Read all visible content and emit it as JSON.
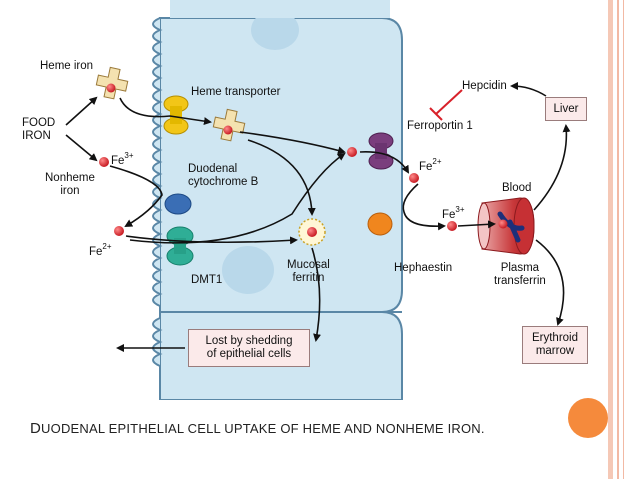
{
  "title_rest": "UODENAL EPITHELIAL CELL UPTAKE OF HEME AND NONHEME IRON.",
  "title_first": "D",
  "labels": {
    "heme_iron": "Heme iron",
    "food_iron": "FOOD\nIRON",
    "nonheme_iron": "Nonheme\niron",
    "fe3_left": "Fe",
    "fe3_left_sup": "3+",
    "fe2_left": "Fe",
    "fe2_left_sup": "2+",
    "heme_transporter": "Heme transporter",
    "duodenal_cytochrome_b": "Duodenal\ncytochrome B",
    "dmt1": "DMT1",
    "mucosal_ferritin": "Mucosal\nferritin",
    "ferroportin": "Ferroportin 1",
    "fe2_right": "Fe",
    "fe2_right_sup": "2+",
    "fe3_right": "Fe",
    "fe3_right_sup": "3+",
    "hephaestin": "Hephaestin",
    "hepcidin": "Hepcidin",
    "blood": "Blood",
    "plasma_transferrin": "Plasma\ntransferrin",
    "liver": "Liver",
    "erythroid_marrow": "Erythroid\nmarrow",
    "lost_by_shedding": "Lost by shedding\nof epithelial cells"
  },
  "colors": {
    "cell": "#cfe6f2",
    "cell_border": "#5a87a6",
    "nucleus": "#b9d8ea",
    "heme_transporter": "#f2c618",
    "cytochrome_b": "#3a6eb5",
    "dmt1": "#2fae96",
    "ferroportin": "#7a3e7d",
    "hephaestin": "#f0861e",
    "iron_dot": "#d8212a",
    "heme_cross": "#f4e2b0",
    "hepcidin_inhibit": "#d8212a",
    "box_fill": "#fbeaea",
    "accent_orange": "#f58a3c",
    "rail": "#f2b9a4"
  }
}
